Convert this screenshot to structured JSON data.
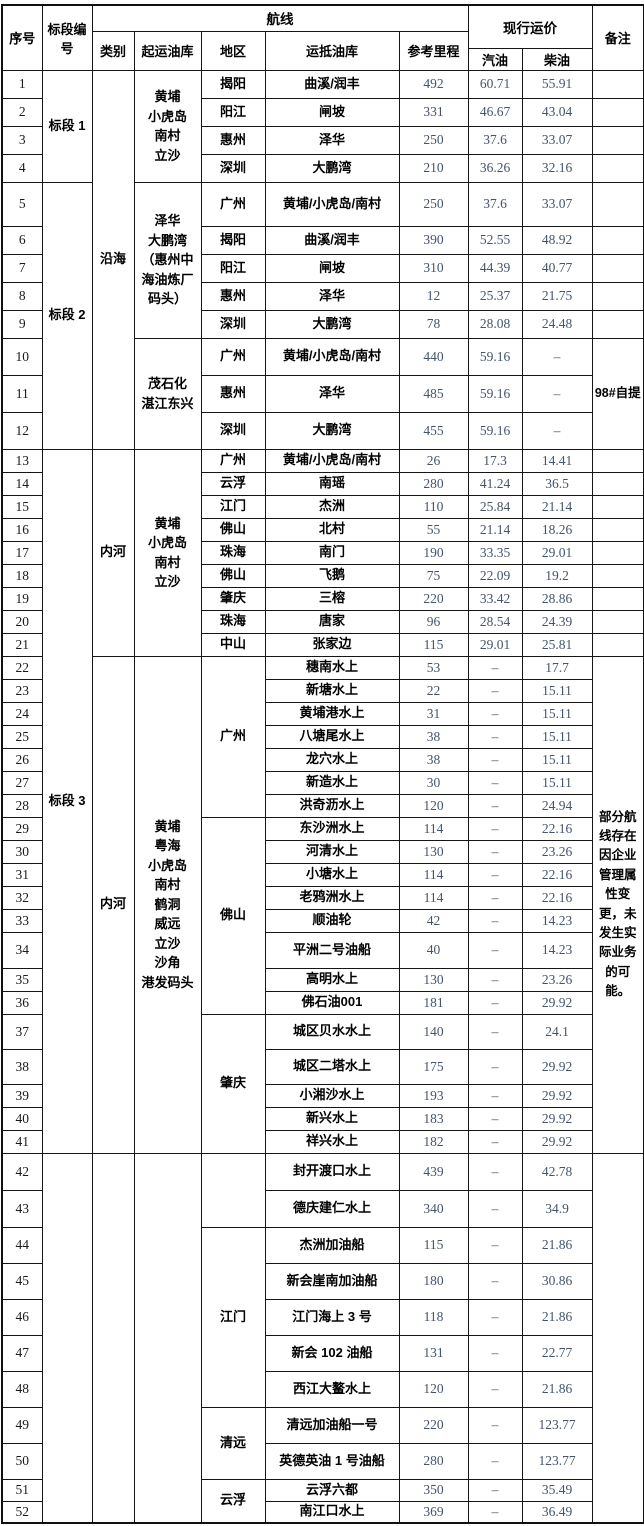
{
  "header": {
    "serial": "序号",
    "section": "标段编号",
    "route": "航线",
    "category": "类别",
    "origin_depot": "起运油库",
    "region": "地区",
    "dest_depot": "运抵油库",
    "mileage": "参考里程",
    "current_price": "现行运价",
    "gasoline": "汽油",
    "diesel": "柴油",
    "remark": "备注"
  },
  "colors": {
    "number_text": "#44546A",
    "border": "#151515",
    "chinese_text": "#000000"
  },
  "rows": [
    {
      "n": "1",
      "dest": "曲溪/润丰",
      "km": "492",
      "gas": "60.71",
      "diesel": "55.91"
    },
    {
      "n": "2",
      "dest": "闸坡",
      "km": "331",
      "gas": "46.67",
      "diesel": "43.04"
    },
    {
      "n": "3",
      "dest": "泽华",
      "km": "250",
      "gas": "37.6",
      "diesel": "33.07"
    },
    {
      "n": "4",
      "dest": "大鹏湾",
      "km": "210",
      "gas": "36.26",
      "diesel": "32.16"
    },
    {
      "n": "5",
      "dest": "黄埔/小虎岛/南村",
      "km": "250",
      "gas": "37.6",
      "diesel": "33.07"
    },
    {
      "n": "6",
      "dest": "曲溪/润丰",
      "km": "390",
      "gas": "52.55",
      "diesel": "48.92"
    },
    {
      "n": "7",
      "dest": "闸坡",
      "km": "310",
      "gas": "44.39",
      "diesel": "40.77"
    },
    {
      "n": "8",
      "dest": "泽华",
      "km": "12",
      "gas": "25.37",
      "diesel": "21.75"
    },
    {
      "n": "9",
      "dest": "大鹏湾",
      "km": "78",
      "gas": "28.08",
      "diesel": "24.48"
    },
    {
      "n": "10",
      "dest": "黄埔/小虎岛/南村",
      "km": "440",
      "gas": "59.16",
      "diesel": "–"
    },
    {
      "n": "11",
      "dest": "泽华",
      "km": "485",
      "gas": "59.16",
      "diesel": "–"
    },
    {
      "n": "12",
      "dest": "大鹏湾",
      "km": "455",
      "gas": "59.16",
      "diesel": "–"
    },
    {
      "n": "13",
      "dest": "黄埔/小虎岛/南村",
      "km": "26",
      "gas": "17.3",
      "diesel": "14.41"
    },
    {
      "n": "14",
      "dest": "南瑶",
      "km": "280",
      "gas": "41.24",
      "diesel": "36.5"
    },
    {
      "n": "15",
      "dest": "杰洲",
      "km": "110",
      "gas": "25.84",
      "diesel": "21.14"
    },
    {
      "n": "16",
      "dest": "北村",
      "km": "55",
      "gas": "21.14",
      "diesel": "18.26"
    },
    {
      "n": "17",
      "dest": "南门",
      "km": "190",
      "gas": "33.35",
      "diesel": "29.01"
    },
    {
      "n": "18",
      "dest": "飞鹅",
      "km": "75",
      "gas": "22.09",
      "diesel": "19.2"
    },
    {
      "n": "19",
      "dest": "三榕",
      "km": "220",
      "gas": "33.42",
      "diesel": "28.86"
    },
    {
      "n": "20",
      "dest": "唐家",
      "km": "96",
      "gas": "28.54",
      "diesel": "24.39"
    },
    {
      "n": "21",
      "dest": "张家边",
      "km": "115",
      "gas": "29.01",
      "diesel": "25.81"
    },
    {
      "n": "22",
      "dest": "穗南水上",
      "km": "53",
      "gas": "–",
      "diesel": "17.7"
    },
    {
      "n": "23",
      "dest": "新塘水上",
      "km": "22",
      "gas": "–",
      "diesel": "15.11"
    },
    {
      "n": "24",
      "dest": "黄埔港水上",
      "km": "31",
      "gas": "–",
      "diesel": "15.11"
    },
    {
      "n": "25",
      "dest": "八塘尾水上",
      "km": "38",
      "gas": "–",
      "diesel": "15.11"
    },
    {
      "n": "26",
      "dest": "龙穴水上",
      "km": "38",
      "gas": "–",
      "diesel": "15.11"
    },
    {
      "n": "27",
      "dest": "新造水上",
      "km": "30",
      "gas": "–",
      "diesel": "15.11"
    },
    {
      "n": "28",
      "dest": "洪奇沥水上",
      "km": "120",
      "gas": "–",
      "diesel": "24.94"
    },
    {
      "n": "29",
      "dest": "东沙洲水上",
      "km": "114",
      "gas": "–",
      "diesel": "22.16"
    },
    {
      "n": "30",
      "dest": "河清水上",
      "km": "130",
      "gas": "–",
      "diesel": "23.26"
    },
    {
      "n": "31",
      "dest": "小塘水上",
      "km": "114",
      "gas": "–",
      "diesel": "22.16"
    },
    {
      "n": "32",
      "dest": "老鸦洲水上",
      "km": "114",
      "gas": "–",
      "diesel": "22.16"
    },
    {
      "n": "33",
      "dest": "顺油轮",
      "km": "42",
      "gas": "–",
      "diesel": "14.23"
    },
    {
      "n": "34",
      "dest": "平洲二号油船",
      "km": "40",
      "gas": "–",
      "diesel": "14.23"
    },
    {
      "n": "35",
      "dest": "高明水上",
      "km": "130",
      "gas": "–",
      "diesel": "23.26"
    },
    {
      "n": "36",
      "dest": "佛石油001",
      "km": "181",
      "gas": "–",
      "diesel": "29.92"
    },
    {
      "n": "37",
      "dest": "城区贝水水上",
      "km": "140",
      "gas": "–",
      "diesel": "24.1"
    },
    {
      "n": "38",
      "dest": "城区二塔水上",
      "km": "175",
      "gas": "–",
      "diesel": "29.92"
    },
    {
      "n": "39",
      "dest": "小湘沙水上",
      "km": "193",
      "gas": "–",
      "diesel": "29.92"
    },
    {
      "n": "40",
      "dest": "新兴水上",
      "km": "183",
      "gas": "–",
      "diesel": "29.92"
    },
    {
      "n": "41",
      "dest": "祥兴水上",
      "km": "182",
      "gas": "–",
      "diesel": "29.92"
    },
    {
      "n": "42",
      "dest": "封开渡口水上",
      "km": "439",
      "gas": "–",
      "diesel": "42.78"
    },
    {
      "n": "43",
      "dest": "德庆建仁水上",
      "km": "340",
      "gas": "–",
      "diesel": "34.9"
    },
    {
      "n": "44",
      "dest": "杰洲加油船",
      "km": "115",
      "gas": "–",
      "diesel": "21.86"
    },
    {
      "n": "45",
      "dest": "新会崖南加油船",
      "km": "180",
      "gas": "–",
      "diesel": "30.86"
    },
    {
      "n": "46",
      "dest": "江门海上 3 号",
      "km": "118",
      "gas": "–",
      "diesel": "21.86"
    },
    {
      "n": "47",
      "dest": "新会 102 油船",
      "km": "131",
      "gas": "–",
      "diesel": "22.77"
    },
    {
      "n": "48",
      "dest": "西江大鳌水上",
      "km": "120",
      "gas": "–",
      "diesel": "21.86"
    },
    {
      "n": "49",
      "dest": "清远加油船一号",
      "km": "220",
      "gas": "–",
      "diesel": "123.77"
    },
    {
      "n": "50",
      "dest": "英德英油 1 号油船",
      "km": "280",
      "gas": "–",
      "diesel": "123.77"
    },
    {
      "n": "51",
      "dest": "云浮六都",
      "km": "350",
      "gas": "–",
      "diesel": "35.49"
    },
    {
      "n": "52",
      "dest": "南江口水上",
      "km": "369",
      "gas": "–",
      "diesel": "36.49"
    }
  ],
  "spans": {
    "section": [
      {
        "text": "标段 1",
        "from": 1,
        "to": 4
      },
      {
        "text": "标段 2",
        "from": 5,
        "to": 12
      },
      {
        "text": "标段 3",
        "from": 13,
        "to": 41
      },
      {
        "text": "",
        "from": 42,
        "to": 52
      }
    ],
    "category": [
      {
        "text": "沿海",
        "from": 1,
        "to": 12
      },
      {
        "text": "内河",
        "from": 13,
        "to": 21
      },
      {
        "text": "内河",
        "from": 22,
        "to": 41
      },
      {
        "text": "",
        "from": 42,
        "to": 52
      }
    ],
    "origin": [
      {
        "text": "黄埔\n小虎岛\n南村\n立沙",
        "from": 1,
        "to": 4
      },
      {
        "text": "泽华\n大鹏湾\n（惠州中海油炼厂码头）",
        "from": 5,
        "to": 9
      },
      {
        "text": "茂石化\n湛江东兴",
        "from": 10,
        "to": 12
      },
      {
        "text": "黄埔\n小虎岛\n南村\n立沙",
        "from": 13,
        "to": 21
      },
      {
        "text": "黄埔\n粤海\n小虎岛\n南村\n鹤洞\n威远\n立沙\n沙角\n港发码头",
        "from": 22,
        "to": 41
      },
      {
        "text": "",
        "from": 42,
        "to": 52
      }
    ],
    "region": [
      {
        "text": "揭阳",
        "from": 1,
        "to": 1
      },
      {
        "text": "阳江",
        "from": 2,
        "to": 2
      },
      {
        "text": "惠州",
        "from": 3,
        "to": 3
      },
      {
        "text": "深圳",
        "from": 4,
        "to": 4
      },
      {
        "text": "广州",
        "from": 5,
        "to": 5
      },
      {
        "text": "揭阳",
        "from": 6,
        "to": 6
      },
      {
        "text": "阳江",
        "from": 7,
        "to": 7
      },
      {
        "text": "惠州",
        "from": 8,
        "to": 8
      },
      {
        "text": "深圳",
        "from": 9,
        "to": 9
      },
      {
        "text": "广州",
        "from": 10,
        "to": 10
      },
      {
        "text": "惠州",
        "from": 11,
        "to": 11
      },
      {
        "text": "深圳",
        "from": 12,
        "to": 12
      },
      {
        "text": "广州",
        "from": 13,
        "to": 13
      },
      {
        "text": "云浮",
        "from": 14,
        "to": 14
      },
      {
        "text": "江门",
        "from": 15,
        "to": 15
      },
      {
        "text": "佛山",
        "from": 16,
        "to": 16
      },
      {
        "text": "珠海",
        "from": 17,
        "to": 17
      },
      {
        "text": "佛山",
        "from": 18,
        "to": 18
      },
      {
        "text": "肇庆",
        "from": 19,
        "to": 19
      },
      {
        "text": "珠海",
        "from": 20,
        "to": 20
      },
      {
        "text": "中山",
        "from": 21,
        "to": 21
      },
      {
        "text": "广州",
        "from": 22,
        "to": 28
      },
      {
        "text": "佛山",
        "from": 29,
        "to": 36
      },
      {
        "text": "肇庆",
        "from": 37,
        "to": 41
      },
      {
        "text": "",
        "from": 42,
        "to": 43
      },
      {
        "text": "江门",
        "from": 44,
        "to": 48
      },
      {
        "text": "清远",
        "from": 49,
        "to": 50
      },
      {
        "text": "云浮",
        "from": 51,
        "to": 52
      }
    ],
    "remark": [
      {
        "text": "",
        "from": 1,
        "to": 1
      },
      {
        "text": "",
        "from": 2,
        "to": 2
      },
      {
        "text": "",
        "from": 3,
        "to": 3
      },
      {
        "text": "",
        "from": 4,
        "to": 4
      },
      {
        "text": "",
        "from": 5,
        "to": 5
      },
      {
        "text": "",
        "from": 6,
        "to": 6
      },
      {
        "text": "",
        "from": 7,
        "to": 7
      },
      {
        "text": "",
        "from": 8,
        "to": 8
      },
      {
        "text": "",
        "from": 9,
        "to": 9
      },
      {
        "text": "98#自提",
        "from": 10,
        "to": 12
      },
      {
        "text": "",
        "from": 13,
        "to": 13
      },
      {
        "text": "",
        "from": 14,
        "to": 14
      },
      {
        "text": "",
        "from": 15,
        "to": 15
      },
      {
        "text": "",
        "from": 16,
        "to": 16
      },
      {
        "text": "",
        "from": 17,
        "to": 17
      },
      {
        "text": "",
        "from": 18,
        "to": 18
      },
      {
        "text": "",
        "from": 19,
        "to": 19
      },
      {
        "text": "",
        "from": 20,
        "to": 20
      },
      {
        "text": "",
        "from": 21,
        "to": 21
      },
      {
        "text": "部分航线存在因企业管理属性变更，未发生实际业务的可能。",
        "from": 22,
        "to": 41
      },
      {
        "text": "",
        "from": 42,
        "to": 52
      }
    ]
  }
}
